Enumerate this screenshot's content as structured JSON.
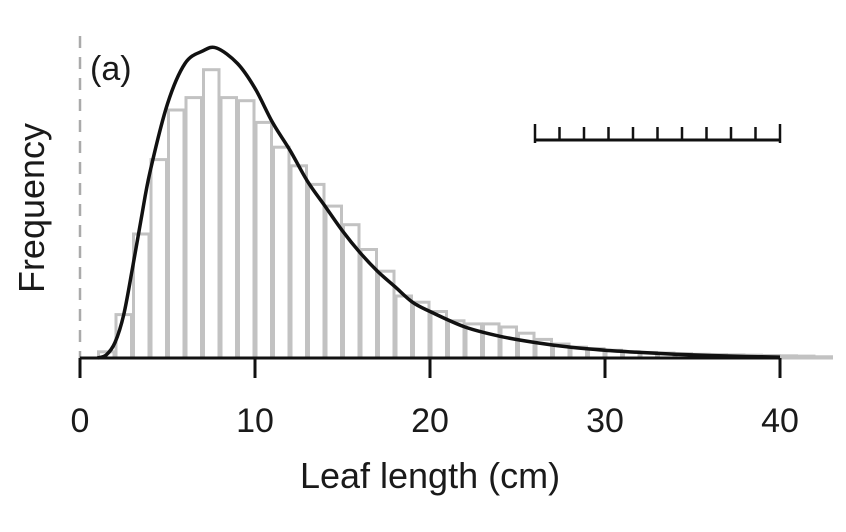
{
  "chart_data": {
    "type": "bar",
    "panel_label": "(a)",
    "xlabel": "Leaf length (cm)",
    "ylabel": "Frequency",
    "xlim": [
      0,
      43
    ],
    "ylim": [
      0,
      1
    ],
    "bin_width": 1,
    "x_ticks": [
      0,
      10,
      20,
      30,
      40
    ],
    "x_tick_labels": [
      "0",
      "10",
      "20",
      "30",
      "40"
    ],
    "bins_start": [
      0,
      1,
      2,
      3,
      4,
      5,
      6,
      7,
      8,
      9,
      10,
      11,
      12,
      13,
      14,
      15,
      16,
      17,
      18,
      19,
      20,
      21,
      22,
      23,
      24,
      25,
      26,
      27,
      28,
      29,
      30,
      31,
      32,
      33,
      34,
      35,
      36,
      37,
      38,
      39,
      40,
      41,
      42
    ],
    "histogram_values": [
      0.0,
      0.02,
      0.14,
      0.4,
      0.64,
      0.8,
      0.84,
      0.93,
      0.84,
      0.83,
      0.76,
      0.68,
      0.62,
      0.56,
      0.49,
      0.43,
      0.35,
      0.28,
      0.2,
      0.18,
      0.15,
      0.12,
      0.11,
      0.11,
      0.1,
      0.08,
      0.06,
      0.045,
      0.035,
      0.03,
      0.025,
      0.02,
      0.018,
      0.016,
      0.014,
      0.012,
      0.011,
      0.01,
      0.009,
      0.008,
      0.007,
      0.006,
      0.004
    ],
    "fitted_curve": {
      "x": [
        1.0,
        1.5,
        2.0,
        2.5,
        3.0,
        3.5,
        4.0,
        5.0,
        6.0,
        7.0,
        7.8,
        9.0,
        10.0,
        11.0,
        12.0,
        13.0,
        14.0,
        15.0,
        16.0,
        17.0,
        18.0,
        19.0,
        20.0,
        22.0,
        24.0,
        26.0,
        28.0,
        30.0,
        32.0,
        34.0,
        36.0,
        38.0,
        40.0
      ],
      "y": [
        0.0,
        0.01,
        0.05,
        0.14,
        0.29,
        0.45,
        0.6,
        0.82,
        0.95,
        0.99,
        1.0,
        0.95,
        0.87,
        0.76,
        0.67,
        0.57,
        0.49,
        0.41,
        0.34,
        0.28,
        0.23,
        0.18,
        0.15,
        0.1,
        0.07,
        0.05,
        0.035,
        0.025,
        0.018,
        0.012,
        0.008,
        0.005,
        0.003
      ]
    },
    "scale_bar": {
      "x_start": 26,
      "x_end": 40,
      "tick_count": 10
    },
    "zero_reference_line": {
      "x": 0,
      "style": "dashed"
    },
    "grid": false,
    "legend": "none",
    "colors": {
      "bars": "#c2c2c2",
      "curve": "#111111",
      "axis": "#111111",
      "dashed_line": "#aaaaaa"
    }
  }
}
